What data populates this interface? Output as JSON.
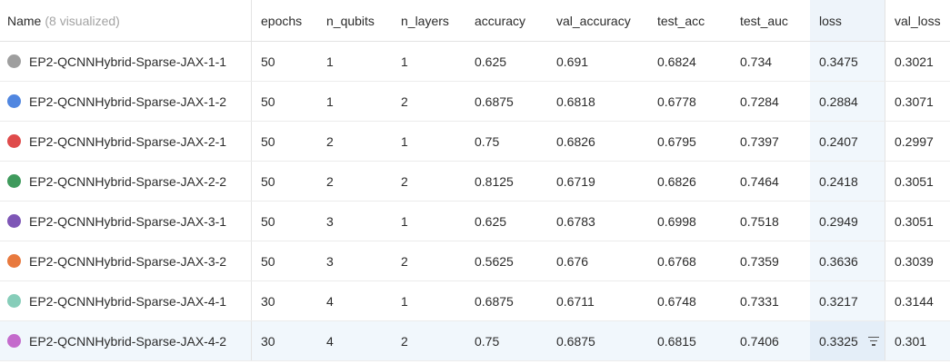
{
  "header": {
    "name_label": "Name",
    "name_sub": "(8 visualized)",
    "columns": {
      "epochs": "epochs",
      "n_qubits": "n_qubits",
      "n_layers": "n_layers",
      "accuracy": "accuracy",
      "val_accuracy": "val_accuracy",
      "test_acc": "test_acc",
      "test_auc": "test_auc",
      "loss": "loss",
      "val_loss": "val_loss"
    }
  },
  "rows": [
    {
      "name": "EP2-QCNNHybrid-Sparse-JAX-1-1",
      "color": "#9e9e9e",
      "epochs": "50",
      "n_qubits": "1",
      "n_layers": "1",
      "accuracy": "0.625",
      "val_accuracy": "0.691",
      "test_acc": "0.6824",
      "test_auc": "0.734",
      "loss": "0.3475",
      "val_loss": "0.3021"
    },
    {
      "name": "EP2-QCNNHybrid-Sparse-JAX-1-2",
      "color": "#5086e0",
      "epochs": "50",
      "n_qubits": "1",
      "n_layers": "2",
      "accuracy": "0.6875",
      "val_accuracy": "0.6818",
      "test_acc": "0.6778",
      "test_auc": "0.7284",
      "loss": "0.2884",
      "val_loss": "0.3071"
    },
    {
      "name": "EP2-QCNNHybrid-Sparse-JAX-2-1",
      "color": "#df4b4b",
      "epochs": "50",
      "n_qubits": "2",
      "n_layers": "1",
      "accuracy": "0.75",
      "val_accuracy": "0.6826",
      "test_acc": "0.6795",
      "test_auc": "0.7397",
      "loss": "0.2407",
      "val_loss": "0.2997"
    },
    {
      "name": "EP2-QCNNHybrid-Sparse-JAX-2-2",
      "color": "#3f9a5c",
      "epochs": "50",
      "n_qubits": "2",
      "n_layers": "2",
      "accuracy": "0.8125",
      "val_accuracy": "0.6719",
      "test_acc": "0.6826",
      "test_auc": "0.7464",
      "loss": "0.2418",
      "val_loss": "0.3051"
    },
    {
      "name": "EP2-QCNNHybrid-Sparse-JAX-3-1",
      "color": "#7e56b6",
      "epochs": "50",
      "n_qubits": "3",
      "n_layers": "1",
      "accuracy": "0.625",
      "val_accuracy": "0.6783",
      "test_acc": "0.6998",
      "test_auc": "0.7518",
      "loss": "0.2949",
      "val_loss": "0.3051"
    },
    {
      "name": "EP2-QCNNHybrid-Sparse-JAX-3-2",
      "color": "#e8793e",
      "epochs": "50",
      "n_qubits": "3",
      "n_layers": "2",
      "accuracy": "0.5625",
      "val_accuracy": "0.676",
      "test_acc": "0.6768",
      "test_auc": "0.7359",
      "loss": "0.3636",
      "val_loss": "0.3039"
    },
    {
      "name": "EP2-QCNNHybrid-Sparse-JAX-4-1",
      "color": "#86cdb9",
      "epochs": "30",
      "n_qubits": "4",
      "n_layers": "1",
      "accuracy": "0.6875",
      "val_accuracy": "0.6711",
      "test_acc": "0.6748",
      "test_auc": "0.7331",
      "loss": "0.3217",
      "val_loss": "0.3144"
    },
    {
      "name": "EP2-QCNNHybrid-Sparse-JAX-4-2",
      "color": "#c46bcc",
      "epochs": "30",
      "n_qubits": "4",
      "n_layers": "2",
      "accuracy": "0.75",
      "val_accuracy": "0.6875",
      "test_acc": "0.6815",
      "test_auc": "0.7406",
      "loss": "0.3325",
      "val_loss": "0.301"
    }
  ],
  "icons": {
    "filter": "filter-icon"
  }
}
